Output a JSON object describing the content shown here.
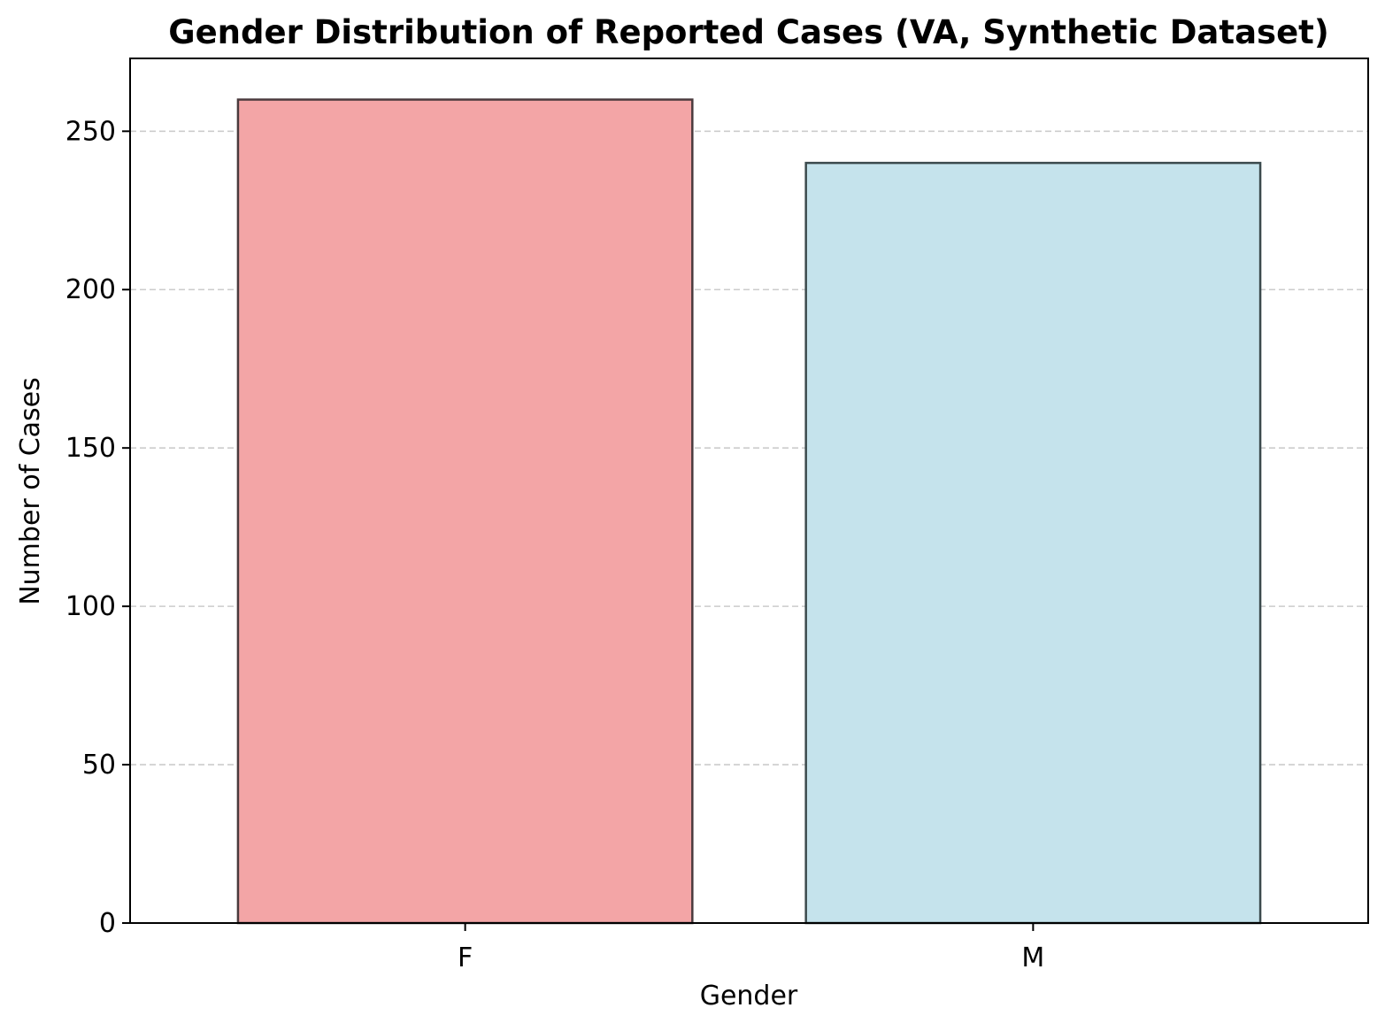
{
  "chart_data": {
    "type": "bar",
    "title": "Gender Distribution of Reported Cases (VA, Synthetic Dataset)",
    "xlabel": "Gender",
    "ylabel": "Number of Cases",
    "categories": [
      "F",
      "M"
    ],
    "values": [
      260,
      240
    ],
    "ylim": [
      0,
      273
    ],
    "yticks": [
      0,
      50,
      100,
      150,
      200,
      250
    ],
    "grid": "y-dashed",
    "legend": "none",
    "colors": {
      "bars": [
        "#f3a5a6",
        "#c5e3ec"
      ],
      "bar_edges": [
        "#4a3a3d",
        "#3b4a4d"
      ],
      "grid": "#cccccc",
      "axes": "#000000"
    }
  }
}
